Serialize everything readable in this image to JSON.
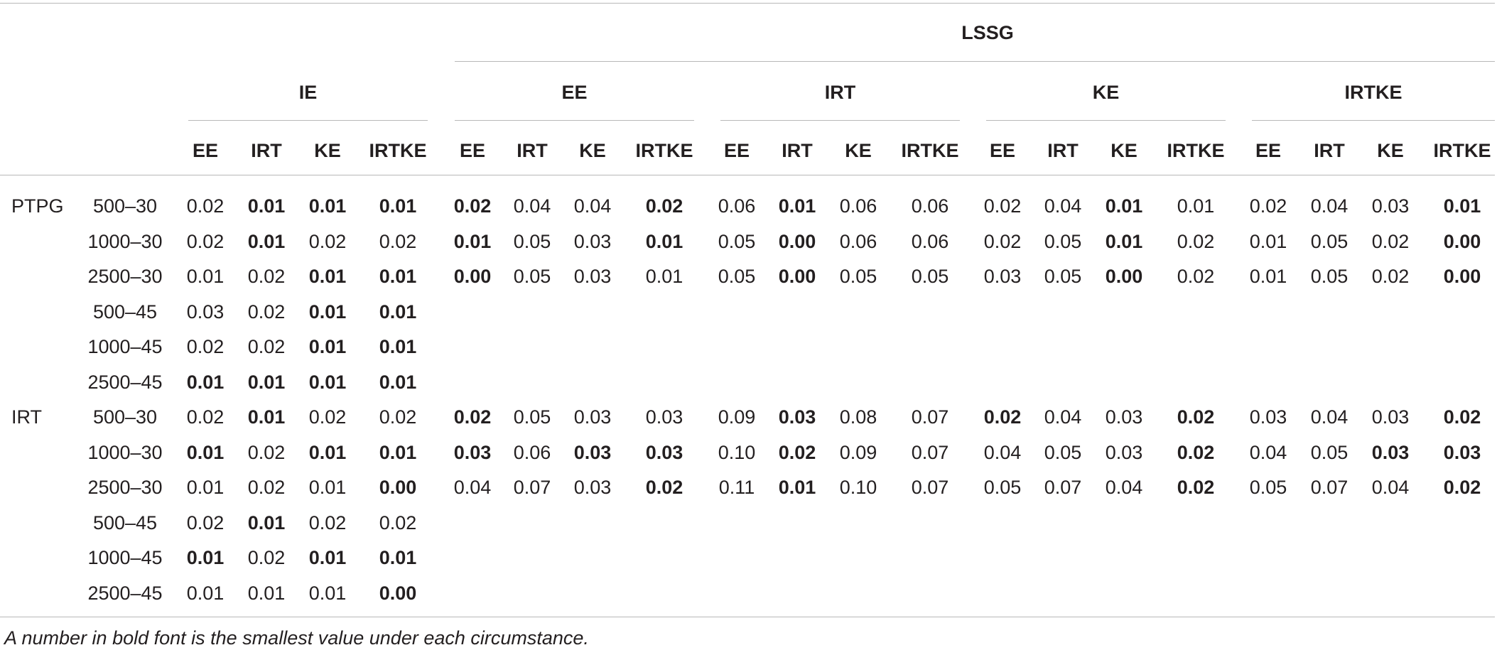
{
  "table": {
    "top_header": "LSSG",
    "groups": [
      "IE",
      "EE",
      "IRT",
      "KE",
      "IRTKE"
    ],
    "columns": [
      "EE",
      "IRT",
      "KE",
      "IRTKE",
      "EE",
      "IRT",
      "KE",
      "IRTKE",
      "EE",
      "IRT",
      "KE",
      "IRTKE",
      "EE",
      "IRT",
      "KE",
      "IRTKE",
      "EE",
      "IRT",
      "KE",
      "IRTKE"
    ],
    "rows": [
      {
        "model": "PTPG",
        "cond": "500–30",
        "values": [
          "0.02",
          "0.01",
          "0.01",
          "0.01",
          "0.02",
          "0.04",
          "0.04",
          "0.02",
          "0.06",
          "0.01",
          "0.06",
          "0.06",
          "0.02",
          "0.04",
          "0.01",
          "0.01",
          "0.02",
          "0.04",
          "0.03",
          "0.01"
        ],
        "bold": [
          1,
          2,
          3,
          4,
          7,
          9,
          14,
          19
        ]
      },
      {
        "model": "",
        "cond": "1000–30",
        "values": [
          "0.02",
          "0.01",
          "0.02",
          "0.02",
          "0.01",
          "0.05",
          "0.03",
          "0.01",
          "0.05",
          "0.00",
          "0.06",
          "0.06",
          "0.02",
          "0.05",
          "0.01",
          "0.02",
          "0.01",
          "0.05",
          "0.02",
          "0.00"
        ],
        "bold": [
          1,
          4,
          7,
          9,
          14,
          19
        ]
      },
      {
        "model": "",
        "cond": "2500–30",
        "values": [
          "0.01",
          "0.02",
          "0.01",
          "0.01",
          "0.00",
          "0.05",
          "0.03",
          "0.01",
          "0.05",
          "0.00",
          "0.05",
          "0.05",
          "0.03",
          "0.05",
          "0.00",
          "0.02",
          "0.01",
          "0.05",
          "0.02",
          "0.00"
        ],
        "bold": [
          2,
          3,
          4,
          9,
          14,
          19
        ]
      },
      {
        "model": "",
        "cond": "500–45",
        "values": [
          "0.03",
          "0.02",
          "0.01",
          "0.01"
        ],
        "bold": [
          2,
          3
        ]
      },
      {
        "model": "",
        "cond": "1000–45",
        "values": [
          "0.02",
          "0.02",
          "0.01",
          "0.01"
        ],
        "bold": [
          2,
          3
        ]
      },
      {
        "model": "",
        "cond": "2500–45",
        "values": [
          "0.01",
          "0.01",
          "0.01",
          "0.01"
        ],
        "bold": [
          0,
          1,
          2,
          3
        ]
      },
      {
        "model": "IRT",
        "cond": "500–30",
        "values": [
          "0.02",
          "0.01",
          "0.02",
          "0.02",
          "0.02",
          "0.05",
          "0.03",
          "0.03",
          "0.09",
          "0.03",
          "0.08",
          "0.07",
          "0.02",
          "0.04",
          "0.03",
          "0.02",
          "0.03",
          "0.04",
          "0.03",
          "0.02"
        ],
        "bold": [
          1,
          4,
          9,
          12,
          15,
          19
        ]
      },
      {
        "model": "",
        "cond": "1000–30",
        "values": [
          "0.01",
          "0.02",
          "0.01",
          "0.01",
          "0.03",
          "0.06",
          "0.03",
          "0.03",
          "0.10",
          "0.02",
          "0.09",
          "0.07",
          "0.04",
          "0.05",
          "0.03",
          "0.02",
          "0.04",
          "0.05",
          "0.03",
          "0.03"
        ],
        "bold": [
          0,
          2,
          3,
          4,
          6,
          7,
          9,
          15,
          18,
          19
        ]
      },
      {
        "model": "",
        "cond": "2500–30",
        "values": [
          "0.01",
          "0.02",
          "0.01",
          "0.00",
          "0.04",
          "0.07",
          "0.03",
          "0.02",
          "0.11",
          "0.01",
          "0.10",
          "0.07",
          "0.05",
          "0.07",
          "0.04",
          "0.02",
          "0.05",
          "0.07",
          "0.04",
          "0.02"
        ],
        "bold": [
          3,
          7,
          9,
          15,
          19
        ]
      },
      {
        "model": "",
        "cond": "500–45",
        "values": [
          "0.02",
          "0.01",
          "0.02",
          "0.02"
        ],
        "bold": [
          1
        ]
      },
      {
        "model": "",
        "cond": "1000–45",
        "values": [
          "0.01",
          "0.02",
          "0.01",
          "0.01"
        ],
        "bold": [
          0,
          2,
          3
        ]
      },
      {
        "model": "",
        "cond": "2500–45",
        "values": [
          "0.01",
          "0.01",
          "0.01",
          "0.00"
        ],
        "bold": [
          3
        ]
      }
    ],
    "footnote": "A number in bold font is the smallest value under each circumstance."
  }
}
